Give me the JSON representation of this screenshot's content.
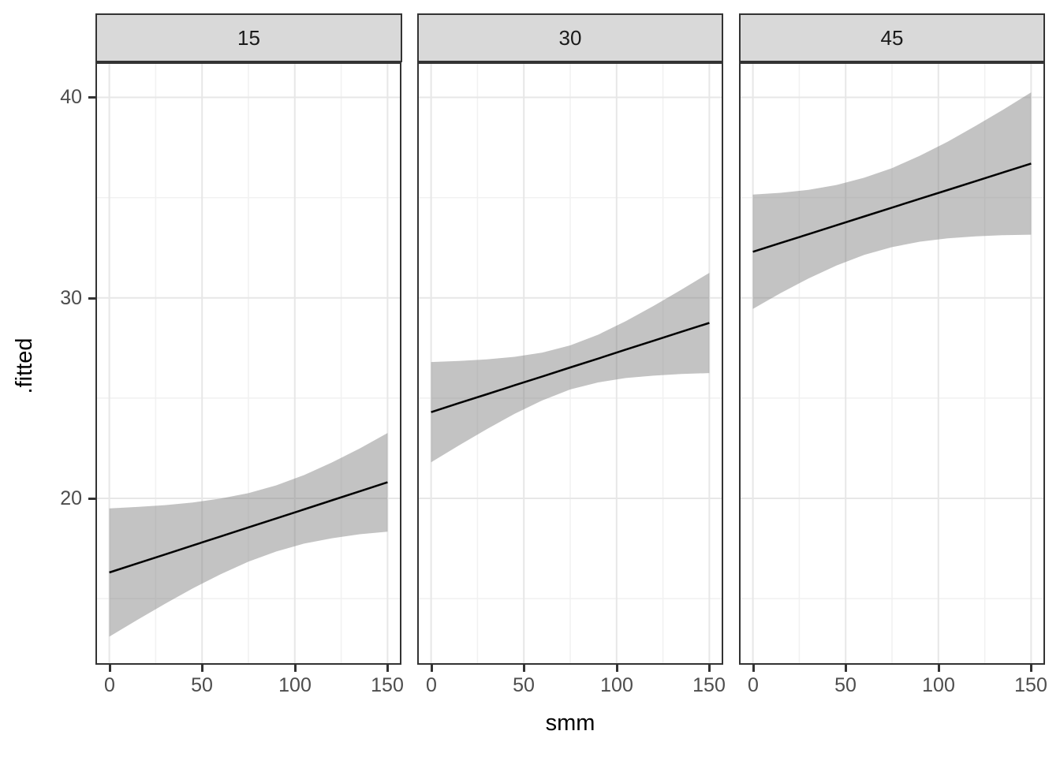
{
  "figure": {
    "background": "#ffffff",
    "panel_background": "#ffffff",
    "panel_border_color": "#333333",
    "strip_background": "#d9d9d9",
    "strip_text_color": "#1a1a1a",
    "grid_major_color": "#e7e7e7",
    "grid_minor_color": "#f1f1f1",
    "ribbon_color": "rgba(130,130,130,0.48)",
    "fit_line_color": "#000000",
    "tick_mark_color": "#333333",
    "tick_label_color": "#4d4d4d",
    "axis_title_color": "#000000"
  },
  "chart_data": {
    "type": "line",
    "description": "Faceted linear-model fitted lines with confidence ribbons (ggplot-style, facets by a grouping value)",
    "xlabel": "smm",
    "ylabel": ".fitted",
    "xlim": [
      -7.5,
      157.5
    ],
    "ylim": [
      11.7,
      41.75
    ],
    "x_ticks": [
      0,
      50,
      100,
      150
    ],
    "y_ticks": [
      20,
      30,
      40
    ],
    "x_minor": [
      25,
      75,
      125
    ],
    "y_minor": [
      15,
      25,
      35
    ],
    "grid": true,
    "legend": "none",
    "facets": [
      {
        "label": "15",
        "x": [
          0,
          15,
          30,
          45,
          60,
          75,
          90,
          105,
          120,
          135,
          150
        ],
        "fitted": [
          16.3,
          16.75,
          17.2,
          17.65,
          18.1,
          18.55,
          19.0,
          19.45,
          19.9,
          20.35,
          20.8
        ],
        "lower": [
          13.1,
          13.93,
          14.74,
          15.51,
          16.21,
          16.84,
          17.35,
          17.74,
          18.01,
          18.21,
          18.34
        ],
        "upper": [
          19.5,
          19.57,
          19.66,
          19.79,
          19.99,
          20.26,
          20.65,
          21.16,
          21.79,
          22.49,
          23.26
        ]
      },
      {
        "label": "30",
        "x": [
          0,
          15,
          30,
          45,
          60,
          75,
          90,
          105,
          120,
          135,
          150
        ],
        "fitted": [
          24.3,
          24.75,
          25.19,
          25.64,
          26.08,
          26.53,
          26.97,
          27.42,
          27.86,
          28.31,
          28.75
        ],
        "lower": [
          21.8,
          22.64,
          23.45,
          24.22,
          24.89,
          25.43,
          25.78,
          26.0,
          26.12,
          26.2,
          26.25
        ],
        "upper": [
          26.8,
          26.85,
          26.93,
          27.06,
          27.27,
          27.63,
          28.16,
          28.84,
          29.6,
          30.41,
          31.25
        ]
      },
      {
        "label": "45",
        "x": [
          0,
          15,
          30,
          45,
          60,
          75,
          90,
          105,
          120,
          135,
          150
        ],
        "fitted": [
          32.3,
          32.74,
          33.18,
          33.62,
          34.06,
          34.5,
          34.94,
          35.38,
          35.82,
          36.26,
          36.7
        ],
        "lower": [
          29.45,
          30.24,
          30.97,
          31.61,
          32.14,
          32.53,
          32.8,
          32.97,
          33.07,
          33.13,
          33.15
        ],
        "upper": [
          35.15,
          35.24,
          35.39,
          35.63,
          35.99,
          36.47,
          37.09,
          37.79,
          38.57,
          39.39,
          40.25
        ]
      }
    ]
  }
}
